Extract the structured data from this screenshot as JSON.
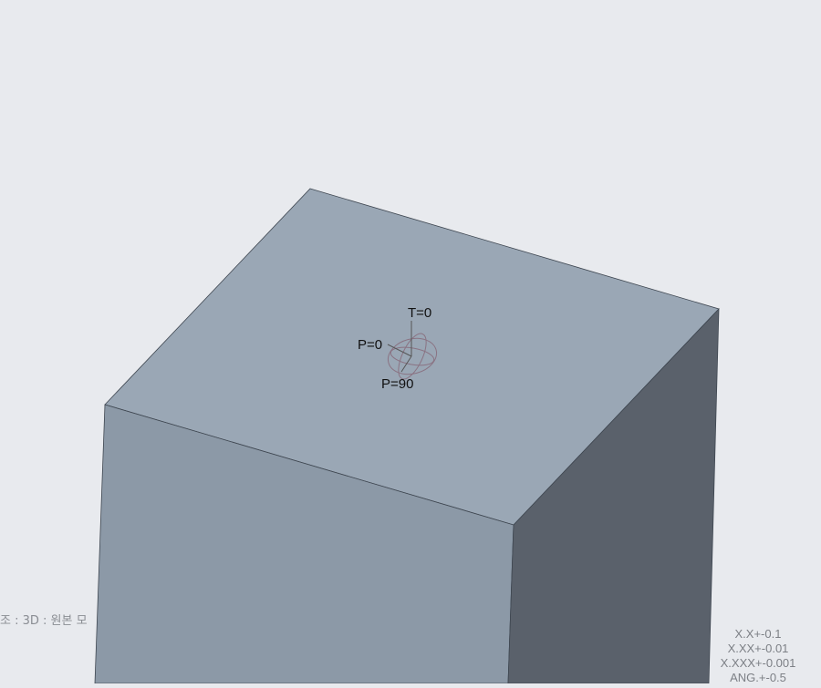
{
  "model": {
    "colors": {
      "background": "#e8eaee",
      "top_face": "#9aa7b5",
      "front_face": "#8c99a7",
      "side_face": "#5a616b",
      "edge": "#3e4650",
      "triad": "#8a7383"
    }
  },
  "spin_center": {
    "icon": "spin-center-triad-icon",
    "labels": {
      "t": "T=0",
      "p0": "P=0",
      "p90": "P=90"
    }
  },
  "status": {
    "text": "조 : 3D : 원본 모"
  },
  "tolerance_table": [
    "X.X+-0.1",
    "X.XX+-0.01",
    "X.XXX+-0.001",
    "ANG.+-0.5"
  ]
}
